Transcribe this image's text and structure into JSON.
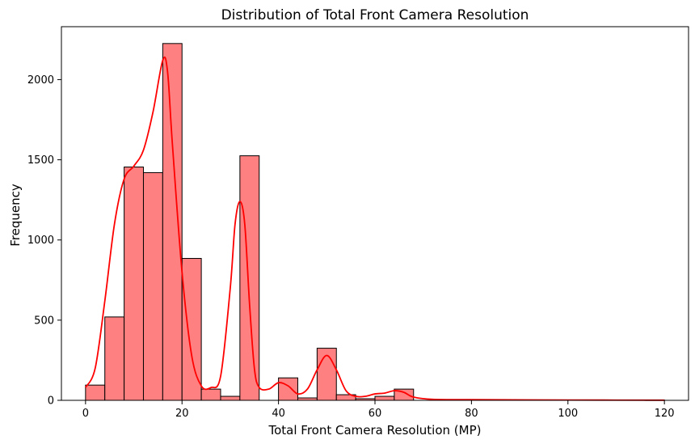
{
  "chart_data": {
    "type": "bar",
    "title": "Distribution of Total Front Camera Resolution",
    "xlabel": "Total Front Camera Resolution (MP)",
    "ylabel": "Frequency",
    "xlim": [
      -5,
      125
    ],
    "ylim": [
      0,
      2330
    ],
    "grid": false,
    "legend": "none",
    "x_ticks": [
      0,
      20,
      40,
      60,
      80,
      100,
      120
    ],
    "y_ticks": [
      0,
      500,
      1000,
      1500,
      2000
    ],
    "bin_width": 4,
    "bins": [
      {
        "start": 0,
        "count": 95
      },
      {
        "start": 4,
        "count": 520
      },
      {
        "start": 8,
        "count": 1455
      },
      {
        "start": 12,
        "count": 1420
      },
      {
        "start": 16,
        "count": 2225
      },
      {
        "start": 20,
        "count": 885
      },
      {
        "start": 24,
        "count": 70
      },
      {
        "start": 28,
        "count": 25
      },
      {
        "start": 32,
        "count": 1525
      },
      {
        "start": 36,
        "count": 0
      },
      {
        "start": 40,
        "count": 140
      },
      {
        "start": 44,
        "count": 15
      },
      {
        "start": 48,
        "count": 325
      },
      {
        "start": 52,
        "count": 35
      },
      {
        "start": 56,
        "count": 10
      },
      {
        "start": 60,
        "count": 25
      },
      {
        "start": 64,
        "count": 70
      },
      {
        "start": 68,
        "count": 0
      },
      {
        "start": 72,
        "count": 0
      },
      {
        "start": 76,
        "count": 0
      },
      {
        "start": 80,
        "count": 0
      },
      {
        "start": 84,
        "count": 0
      },
      {
        "start": 88,
        "count": 0
      },
      {
        "start": 92,
        "count": 0
      },
      {
        "start": 96,
        "count": 0
      },
      {
        "start": 100,
        "count": 0
      },
      {
        "start": 104,
        "count": 0
      },
      {
        "start": 108,
        "count": 0
      },
      {
        "start": 112,
        "count": 0
      },
      {
        "start": 116,
        "count": 2
      }
    ],
    "kde": {
      "x": [
        0,
        2,
        4,
        6,
        8,
        10,
        12,
        14,
        16,
        17,
        18,
        20,
        22,
        24,
        26,
        28,
        30,
        31,
        32,
        33,
        34,
        35,
        36,
        38,
        40,
        42,
        44,
        46,
        48,
        50,
        52,
        54,
        56,
        58,
        60,
        62,
        64,
        66,
        68,
        72,
        80,
        100,
        120
      ],
      "y": [
        80,
        200,
        620,
        1100,
        1380,
        1460,
        1560,
        1800,
        2120,
        2050,
        1600,
        800,
        280,
        90,
        80,
        150,
        700,
        1100,
        1240,
        1100,
        600,
        200,
        80,
        70,
        110,
        90,
        40,
        70,
        190,
        280,
        190,
        60,
        25,
        25,
        40,
        45,
        60,
        50,
        20,
        6,
        4,
        2,
        1
      ]
    },
    "colors": {
      "bar_fill": "#ff8080",
      "bar_edge": "#000000",
      "kde_line": "#ff0000"
    }
  }
}
